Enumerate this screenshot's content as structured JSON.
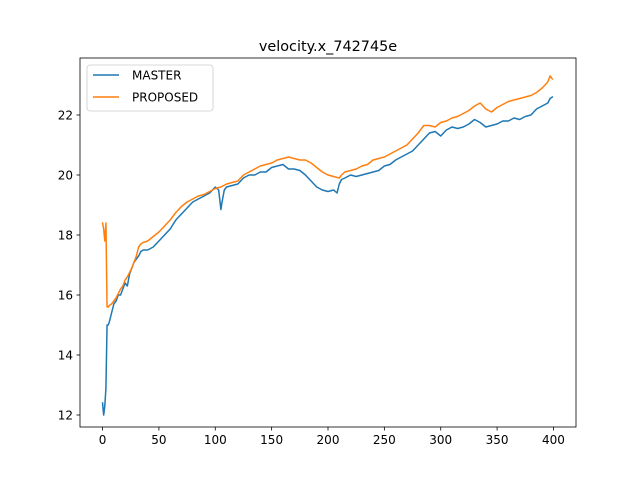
{
  "chart_data": {
    "type": "line",
    "title": "velocity.x_742745e",
    "xlabel": "",
    "ylabel": "",
    "xlim": [
      -20,
      420
    ],
    "ylim": [
      11.6,
      23.9
    ],
    "xticks": [
      0,
      50,
      100,
      150,
      200,
      250,
      300,
      350,
      400
    ],
    "yticks": [
      12,
      14,
      16,
      18,
      20,
      22
    ],
    "xtick_labels": [
      "0",
      "50",
      "100",
      "150",
      "200",
      "250",
      "300",
      "350",
      "400"
    ],
    "ytick_labels": [
      "12",
      "14",
      "16",
      "18",
      "20",
      "22"
    ],
    "grid": false,
    "legend_position": "top-left",
    "series": [
      {
        "name": "MASTER",
        "color": "#1f77b4",
        "x": [
          0,
          1,
          2,
          3,
          4,
          5,
          6,
          8,
          10,
          12,
          14,
          16,
          18,
          20,
          22,
          24,
          26,
          28,
          30,
          32,
          34,
          36,
          40,
          45,
          50,
          55,
          60,
          65,
          70,
          75,
          80,
          85,
          90,
          95,
          100,
          103,
          105,
          106,
          108,
          110,
          115,
          120,
          125,
          130,
          135,
          140,
          145,
          150,
          155,
          160,
          165,
          170,
          175,
          180,
          185,
          190,
          195,
          200,
          205,
          208,
          210,
          212,
          215,
          220,
          225,
          230,
          235,
          240,
          245,
          250,
          255,
          260,
          265,
          270,
          275,
          280,
          285,
          290,
          295,
          300,
          305,
          310,
          315,
          320,
          325,
          330,
          335,
          340,
          345,
          350,
          355,
          360,
          365,
          370,
          375,
          380,
          385,
          390,
          395,
          397,
          399
        ],
        "y": [
          12.4,
          12.0,
          12.3,
          12.9,
          15.0,
          15.0,
          15.1,
          15.4,
          15.7,
          15.8,
          16.0,
          16.0,
          16.2,
          16.4,
          16.3,
          16.7,
          16.9,
          17.1,
          17.2,
          17.3,
          17.45,
          17.5,
          17.5,
          17.6,
          17.8,
          18.0,
          18.2,
          18.5,
          18.7,
          18.9,
          19.1,
          19.2,
          19.3,
          19.4,
          19.6,
          19.5,
          18.85,
          19.1,
          19.5,
          19.6,
          19.65,
          19.7,
          19.9,
          20.0,
          20.0,
          20.1,
          20.1,
          20.25,
          20.3,
          20.35,
          20.2,
          20.2,
          20.15,
          20.0,
          19.8,
          19.6,
          19.5,
          19.45,
          19.5,
          19.4,
          19.7,
          19.85,
          19.9,
          20.0,
          19.95,
          20.0,
          20.05,
          20.1,
          20.15,
          20.3,
          20.35,
          20.5,
          20.6,
          20.7,
          20.8,
          21.0,
          21.2,
          21.4,
          21.45,
          21.3,
          21.5,
          21.6,
          21.55,
          21.6,
          21.7,
          21.85,
          21.75,
          21.6,
          21.65,
          21.7,
          21.8,
          21.8,
          21.9,
          21.85,
          21.95,
          22.0,
          22.2,
          22.3,
          22.4,
          22.55,
          22.6
        ]
      },
      {
        "name": "PROPOSED",
        "color": "#ff7f0e",
        "x": [
          0,
          1,
          2,
          3,
          4,
          5,
          6,
          8,
          10,
          12,
          14,
          16,
          18,
          20,
          22,
          24,
          26,
          28,
          30,
          32,
          34,
          36,
          40,
          45,
          50,
          55,
          60,
          65,
          70,
          75,
          80,
          85,
          90,
          95,
          100,
          105,
          110,
          115,
          120,
          125,
          130,
          135,
          140,
          145,
          150,
          155,
          160,
          165,
          170,
          175,
          180,
          185,
          190,
          195,
          200,
          205,
          210,
          212,
          215,
          220,
          225,
          230,
          235,
          240,
          245,
          250,
          255,
          260,
          265,
          270,
          275,
          280,
          285,
          290,
          295,
          300,
          305,
          310,
          315,
          320,
          325,
          330,
          335,
          340,
          345,
          350,
          355,
          360,
          365,
          370,
          375,
          380,
          385,
          390,
          395,
          397,
          399
        ],
        "y": [
          18.4,
          18.2,
          17.8,
          18.4,
          15.6,
          15.6,
          15.65,
          15.7,
          15.8,
          15.9,
          16.05,
          16.2,
          16.3,
          16.5,
          16.6,
          16.75,
          16.9,
          17.1,
          17.3,
          17.6,
          17.7,
          17.75,
          17.8,
          17.95,
          18.1,
          18.3,
          18.5,
          18.75,
          18.95,
          19.1,
          19.2,
          19.3,
          19.35,
          19.45,
          19.55,
          19.6,
          19.7,
          19.75,
          19.8,
          20.0,
          20.1,
          20.2,
          20.3,
          20.35,
          20.4,
          20.5,
          20.55,
          20.6,
          20.55,
          20.5,
          20.5,
          20.4,
          20.25,
          20.1,
          20.0,
          19.95,
          19.9,
          20.0,
          20.1,
          20.15,
          20.2,
          20.3,
          20.35,
          20.5,
          20.55,
          20.6,
          20.7,
          20.8,
          20.9,
          21.0,
          21.2,
          21.4,
          21.65,
          21.65,
          21.6,
          21.75,
          21.8,
          21.9,
          21.95,
          22.05,
          22.15,
          22.3,
          22.4,
          22.2,
          22.1,
          22.25,
          22.35,
          22.45,
          22.5,
          22.55,
          22.6,
          22.65,
          22.75,
          22.9,
          23.1,
          23.3,
          23.2
        ]
      }
    ]
  }
}
